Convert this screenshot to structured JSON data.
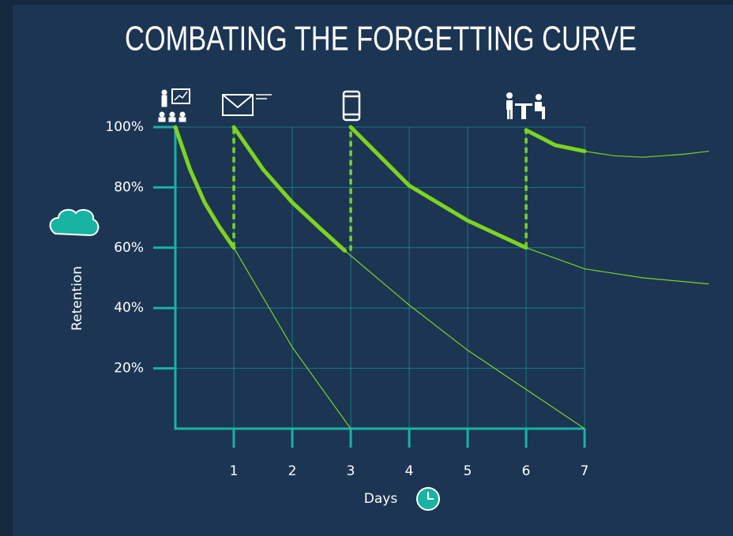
{
  "chart_data": {
    "type": "line",
    "title": "COMBATING THE FORGETTING CURVE",
    "x_label": "Days",
    "y_label": "Retention",
    "xlim": [
      0,
      9.12
    ],
    "xticks": [
      1,
      2,
      3,
      4,
      5,
      6,
      7
    ],
    "ylim": [
      0,
      100
    ],
    "yticks": [
      {
        "value": 20,
        "label": "20%"
      },
      {
        "value": 40,
        "label": "40%"
      },
      {
        "value": 60,
        "label": "60%"
      },
      {
        "value": 80,
        "label": "80%"
      },
      {
        "value": 100,
        "label": "100%"
      }
    ],
    "grid": true,
    "series": [
      {
        "color": "#7ed321",
        "style": "bold",
        "x": [
          0,
          0.25,
          0.5,
          0.75,
          1
        ],
        "values": [
          100,
          86,
          75,
          67,
          60
        ]
      },
      {
        "color": "#7ed321",
        "style": "thin",
        "x": [
          1,
          2,
          3
        ],
        "values": [
          60,
          27,
          0
        ]
      },
      {
        "color": "#7ed321",
        "style": "bold",
        "x": [
          1,
          1.5,
          2,
          2.5,
          2.9
        ],
        "values": [
          100,
          86,
          75,
          66,
          59
        ]
      },
      {
        "color": "#7ed321",
        "style": "thin",
        "x": [
          2.9,
          4,
          5,
          6,
          7
        ],
        "values": [
          59,
          41,
          26,
          13,
          0
        ]
      },
      {
        "color": "#7ed321",
        "style": "bold",
        "x": [
          3,
          4,
          5,
          6
        ],
        "values": [
          100,
          80.6,
          69,
          60
        ]
      },
      {
        "color": "#7ed321",
        "style": "thin",
        "x": [
          6,
          7,
          8,
          9.12
        ],
        "values": [
          60,
          53,
          50,
          48
        ]
      },
      {
        "color": "#7ed321",
        "style": "bold",
        "x": [
          6,
          6.5,
          7
        ],
        "values": [
          99,
          94,
          92
        ]
      },
      {
        "color": "#7ed321",
        "style": "thin",
        "x": [
          7,
          7.5,
          8,
          8.7,
          9.12
        ],
        "values": [
          92,
          90.5,
          90,
          91,
          92
        ]
      }
    ]
  }
}
